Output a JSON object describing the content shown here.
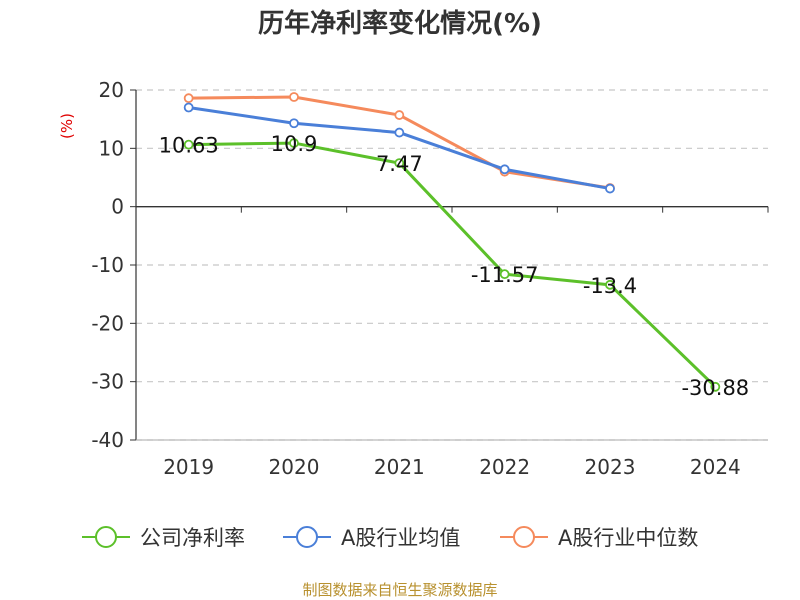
{
  "chart_data": {
    "type": "line",
    "title": "历年净利率变化情况(%)",
    "ylabel": "(%)",
    "xlabel": "",
    "categories": [
      "2019",
      "2020",
      "2021",
      "2022",
      "2023",
      "2024"
    ],
    "ylim": [
      -40,
      20
    ],
    "yticks": [
      20,
      10,
      0,
      -10,
      -20,
      -30,
      -40
    ],
    "grid": true,
    "legend_position": "bottom",
    "series": [
      {
        "name": "公司净利率",
        "color": "#5cc02a",
        "show_labels": true,
        "values": [
          10.63,
          10.9,
          7.47,
          -11.57,
          -13.4,
          -30.88
        ]
      },
      {
        "name": "A股行业均值",
        "color": "#4a7fd8",
        "show_labels": false,
        "values": [
          17.0,
          14.3,
          12.7,
          6.4,
          3.1,
          null
        ]
      },
      {
        "name": "A股行业中位数",
        "color": "#f58a5c",
        "show_labels": false,
        "values": [
          18.6,
          18.8,
          15.7,
          6.0,
          3.2,
          null
        ]
      }
    ],
    "data_labels": [
      "10.63",
      "10.9",
      "7.47",
      "-11.57",
      "-13.4",
      "-30.88"
    ]
  },
  "source_text": "制图数据来自恒生聚源数据库"
}
